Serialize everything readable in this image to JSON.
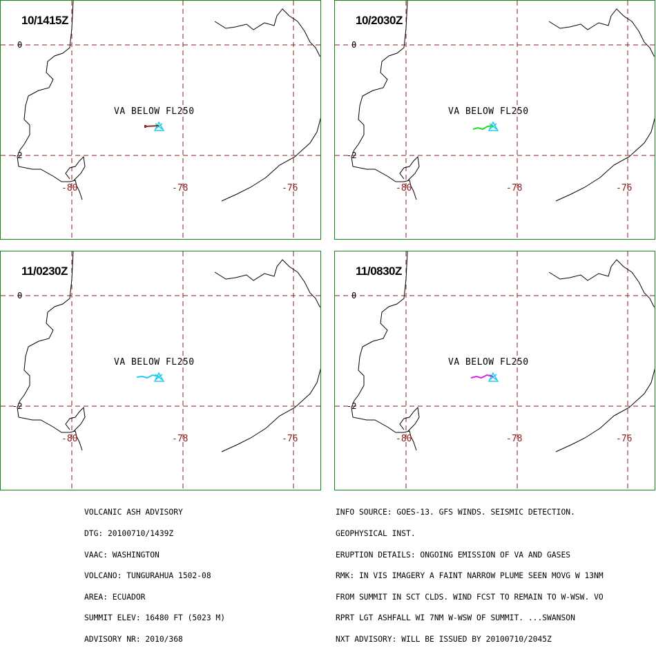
{
  "panels": [
    {
      "time": "10/1415Z",
      "label": "VA BELOW FL250",
      "plume_color": "#8b2a1a"
    },
    {
      "time": "10/2030Z",
      "label": "VA BELOW FL250",
      "plume_color": "#22dd22"
    },
    {
      "time": "11/0230Z",
      "label": "VA BELOW FL250",
      "plume_color": "#22ccee"
    },
    {
      "time": "11/0830Z",
      "label": "VA BELOW FL250",
      "plume_color": "#dd22dd"
    }
  ],
  "map": {
    "lat_labels": [
      "0",
      "-2"
    ],
    "lon_labels": [
      "-80",
      "-78",
      "-76"
    ],
    "volcano_marker_color": "#22ccee",
    "grid_color": "#8b1a1a",
    "coast_color": "#000000",
    "border_color": "#118811"
  },
  "advisory_left": [
    "VOLCANIC ASH ADVISORY",
    "DTG: 20100710/1439Z",
    "VAAC: WASHINGTON",
    "VOLCANO: TUNGURAHUA 1502-08",
    "AREA: ECUADOR",
    "SUMMIT ELEV: 16480 FT (5023 M)",
    "ADVISORY NR: 2010/368"
  ],
  "advisory_right": [
    "INFO SOURCE: GOES-13. GFS WINDS. SEISMIC DETECTION.",
    "GEOPHYSICAL INST.",
    "ERUPTION DETAILS: ONGOING EMISSION OF VA AND GASES",
    "RMK: IN VIS IMAGERY A FAINT NARROW PLUME SEEN MOVG W 13NM",
    "FROM SUMMIT IN SCT CLDS. WIND FCST TO REMAIN TO W-WSW. VO",
    "RPRT LGT ASHFALL WI 7NM W-WSW OF SUMMIT. ...SWANSON",
    "NXT ADVISORY: WILL BE ISSUED BY 20100710/2045Z"
  ]
}
